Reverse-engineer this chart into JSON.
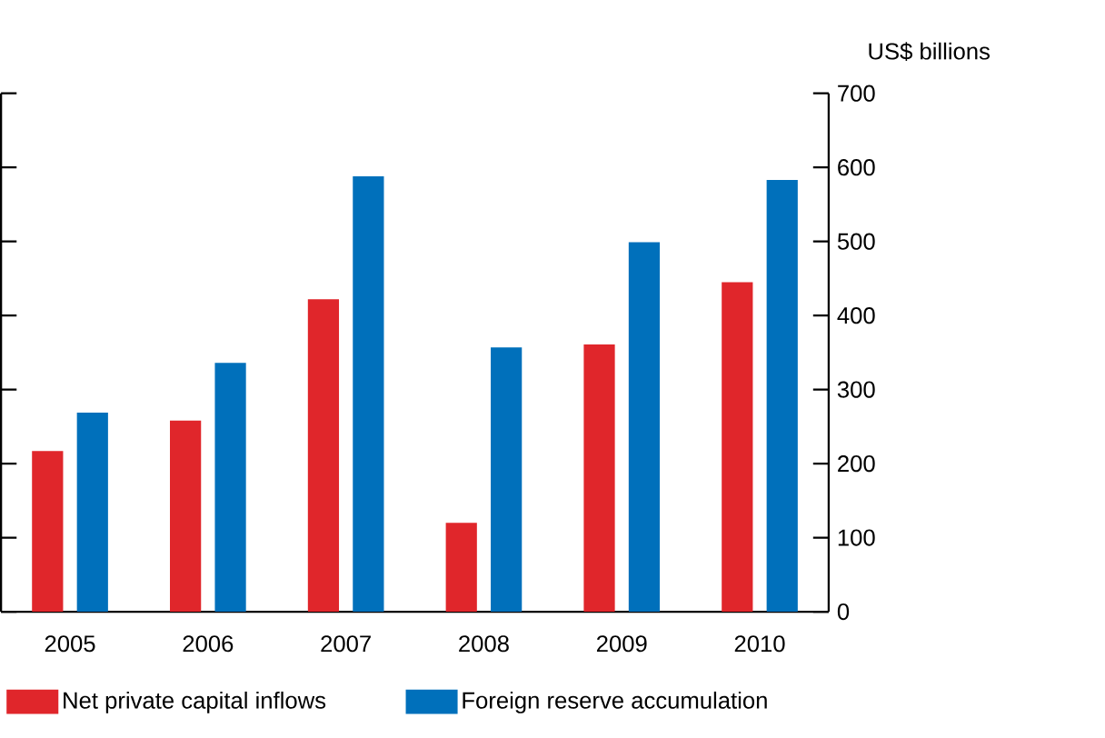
{
  "chart_data": {
    "type": "bar",
    "ylabel": "US$ billions",
    "categories": [
      "2005",
      "2006",
      "2007",
      "2008",
      "2009",
      "2010"
    ],
    "series": [
      {
        "name": "Net private capital inflows",
        "color": "#e0262b",
        "values": [
          217,
          258,
          422,
          120,
          361,
          445
        ]
      },
      {
        "name": "Foreign reserve accumulation",
        "color": "#0070bb",
        "values": [
          269,
          336,
          588,
          357,
          499,
          583
        ]
      }
    ],
    "ylim": [
      0,
      700
    ],
    "yticks": [
      0,
      100,
      200,
      300,
      400,
      500,
      600,
      700
    ],
    "grid": false,
    "legend": "bottom"
  }
}
